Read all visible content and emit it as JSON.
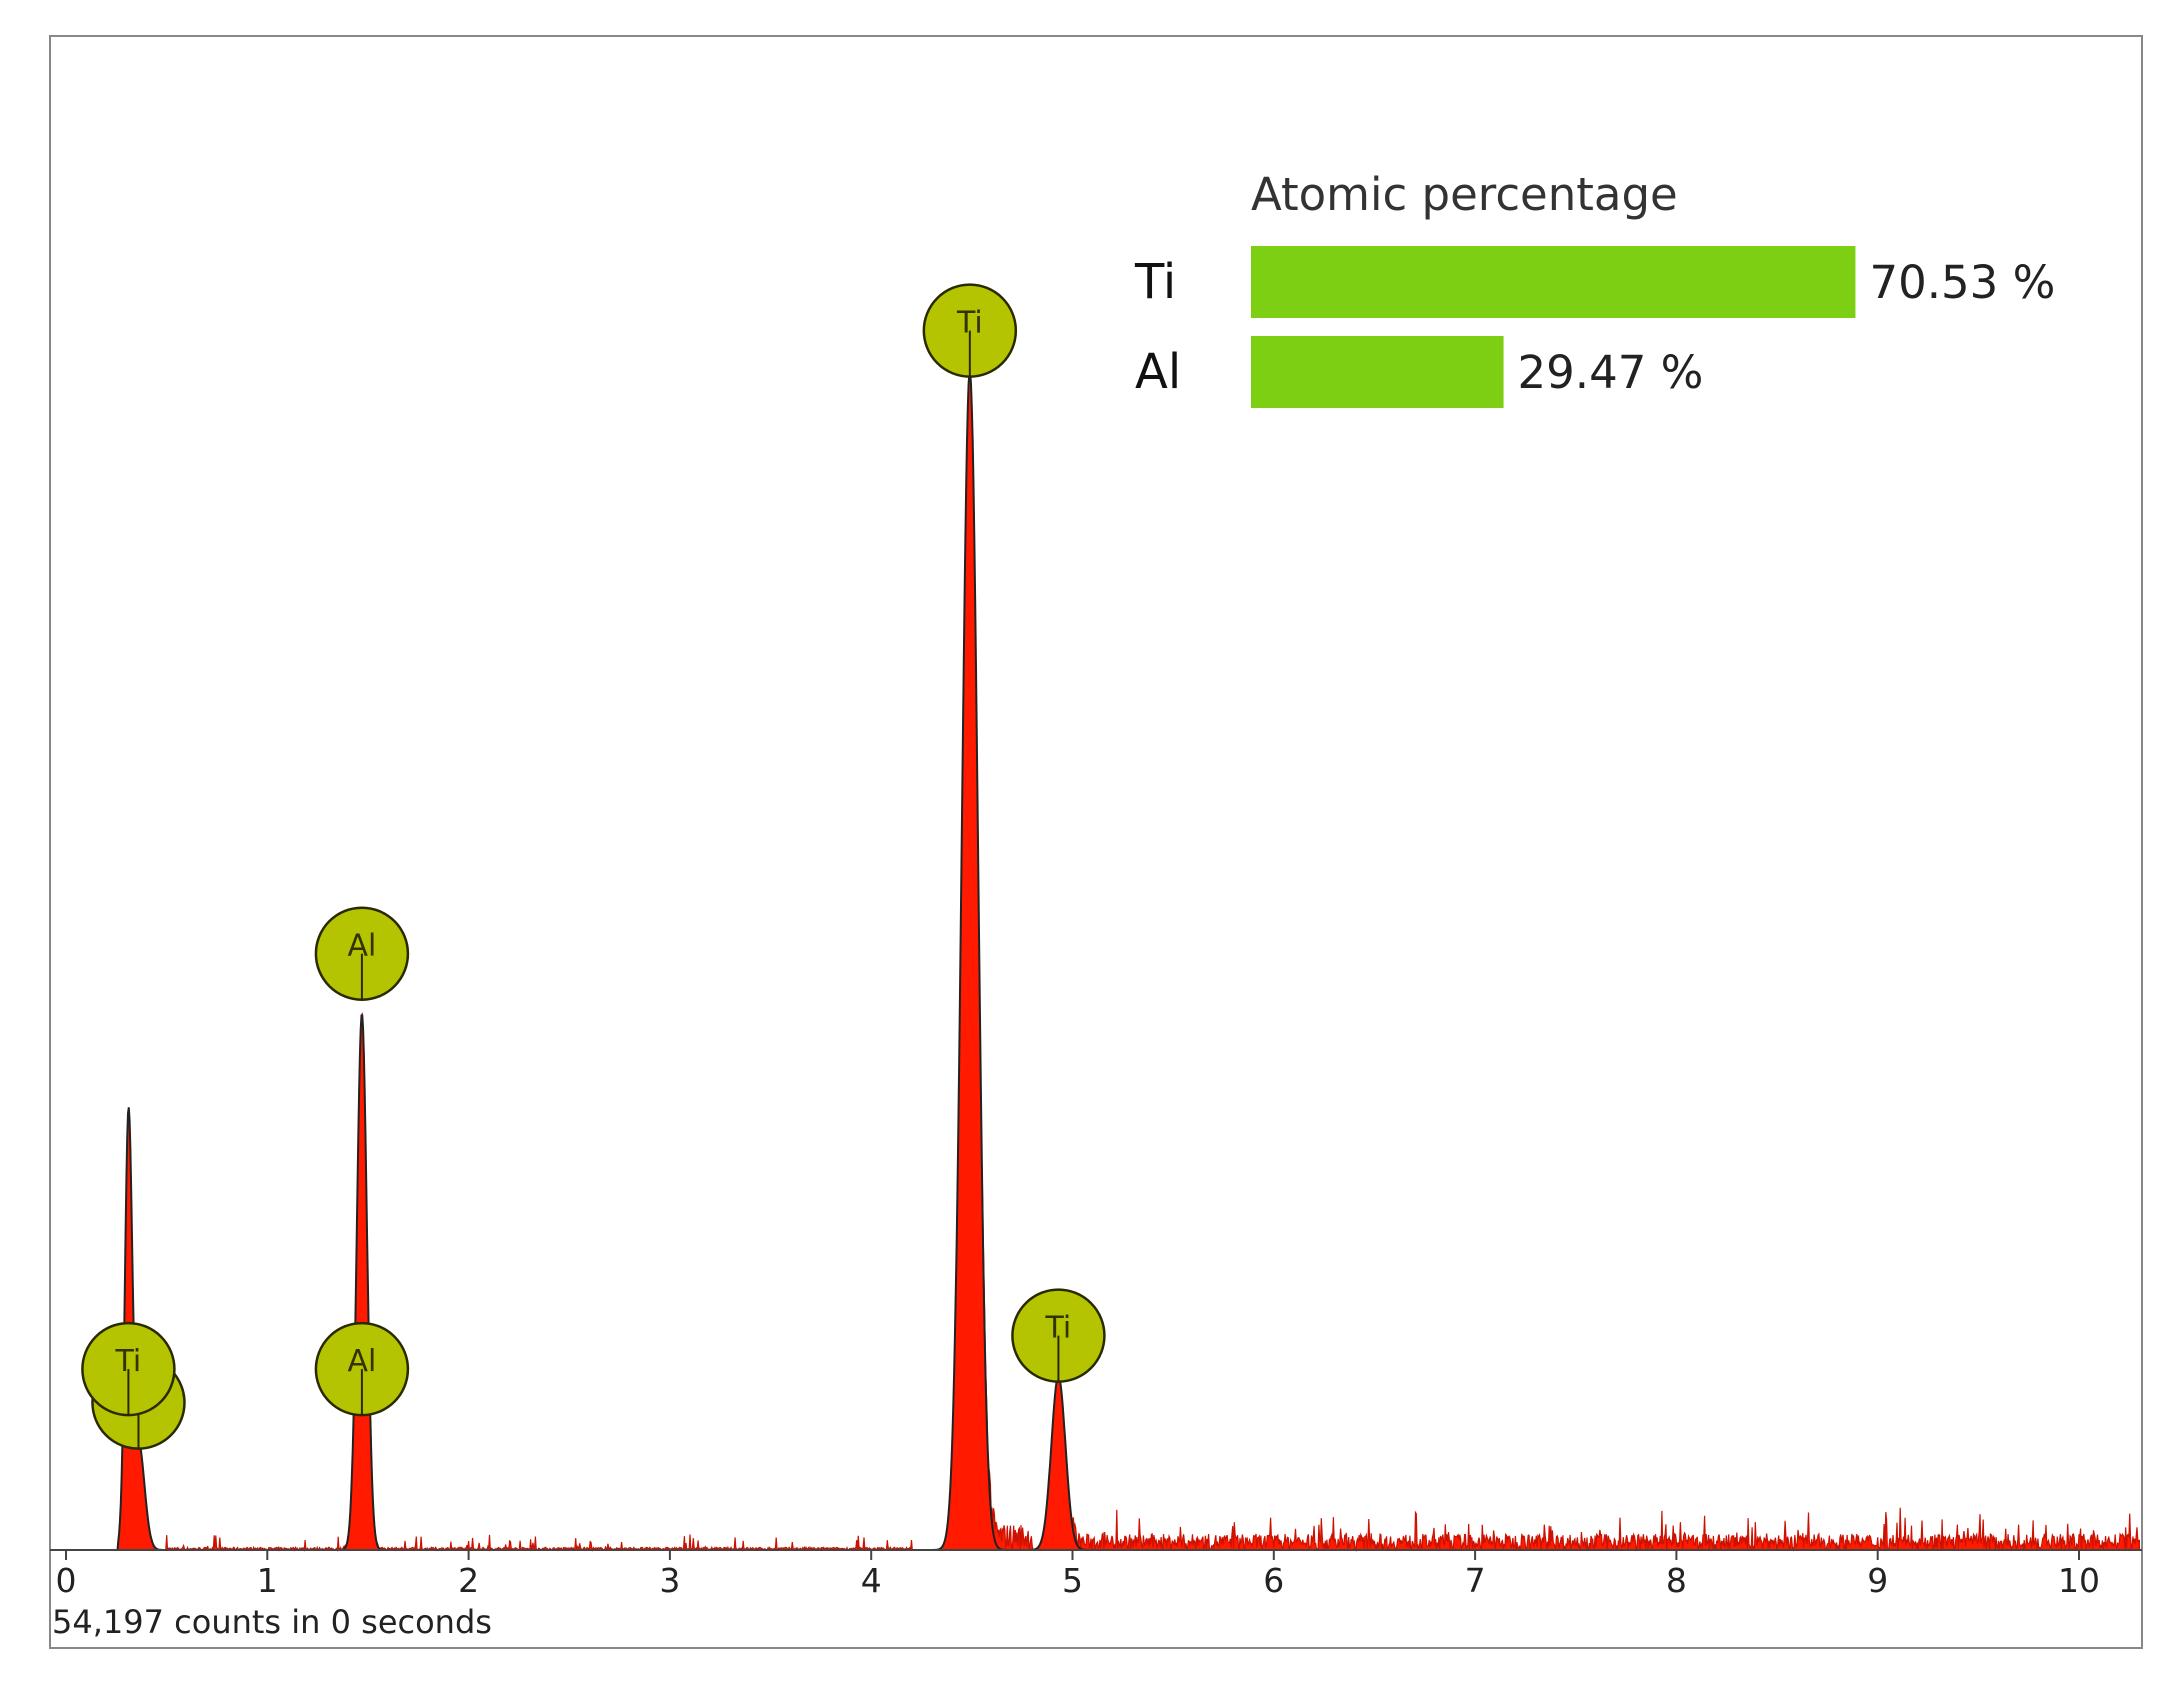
{
  "chart_data": {
    "type": "line",
    "title": "",
    "xlabel": "",
    "ylabel": "",
    "xlim": [
      0,
      10.3
    ],
    "ylim": [
      0,
      1
    ],
    "x_ticks": [
      "0",
      "1",
      "2",
      "3",
      "4",
      "5",
      "6",
      "7",
      "8",
      "9",
      "10"
    ],
    "footer": "54,197 counts in 0 seconds",
    "colors": {
      "spectrum": "#ff1a00",
      "fit": "#222222",
      "marker": "#b5c400",
      "bar": "#7ccf12"
    },
    "peaks": [
      {
        "element": "Ti",
        "energy": 0.31,
        "height": 0.31,
        "width": 0.018
      },
      {
        "element": "Ti",
        "energy": 0.36,
        "height": 0.08,
        "width": 0.03
      },
      {
        "element": "Al",
        "energy": 1.47,
        "height": 0.4,
        "width": 0.025
      },
      {
        "element": "Ti",
        "energy": 4.49,
        "height": 0.88,
        "width": 0.04
      },
      {
        "element": "Ti",
        "energy": 4.93,
        "height": 0.13,
        "width": 0.035
      }
    ],
    "markers": [
      {
        "label": "Ti",
        "energy": 0.36,
        "level": 0.11
      },
      {
        "label": "Ti",
        "energy": 0.31,
        "level": 0.135
      },
      {
        "label": "Al",
        "energy": 1.47,
        "level": 0.445
      },
      {
        "label": "Al",
        "energy": 1.47,
        "level": 0.135
      },
      {
        "label": "Ti",
        "energy": 4.49,
        "level": 0.91
      },
      {
        "label": "Ti",
        "energy": 4.93,
        "level": 0.16
      }
    ],
    "atomic_percentage": {
      "title": "Atomic percentage",
      "items": [
        {
          "element": "Ti",
          "value": 70.53,
          "label": "70.53 %"
        },
        {
          "element": "Al",
          "value": 29.47,
          "label": "29.47 %"
        }
      ]
    }
  }
}
